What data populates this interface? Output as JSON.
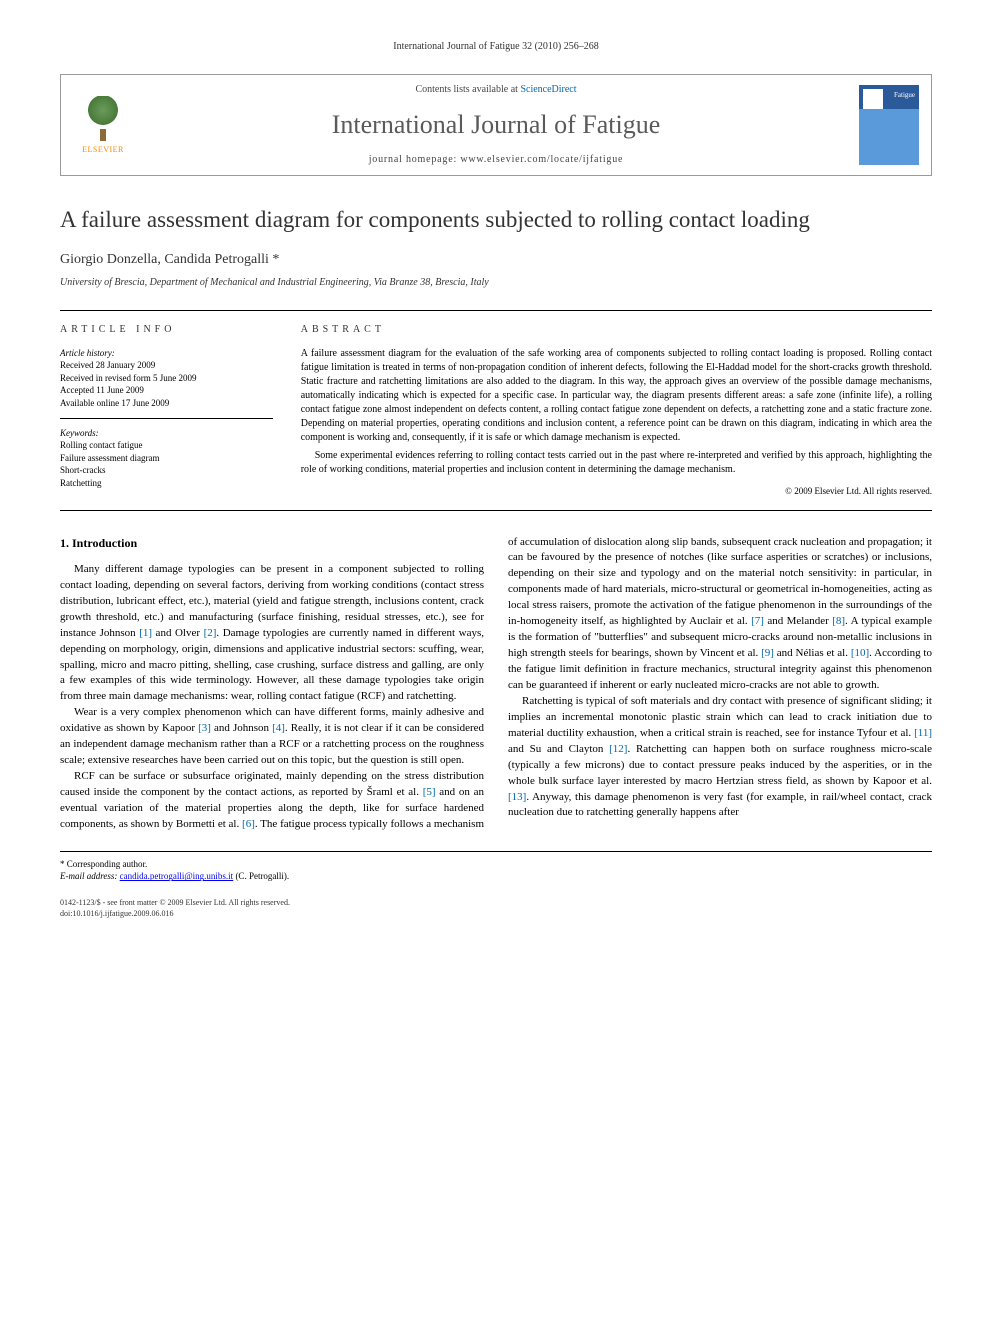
{
  "page_header": "International Journal of Fatigue 32 (2010) 256–268",
  "banner": {
    "publisher": "ELSEVIER",
    "contents_prefix": "Contents lists available at ",
    "contents_link": "ScienceDirect",
    "journal_name": "International Journal of Fatigue",
    "homepage_prefix": "journal homepage: ",
    "homepage_url": "www.elsevier.com/locate/ijfatigue",
    "cover_text": "Fatigue"
  },
  "article": {
    "title": "A failure assessment diagram for components subjected to rolling contact loading",
    "authors": "Giorgio Donzella, Candida Petrogalli *",
    "affiliation": "University of Brescia, Department of Mechanical and Industrial Engineering, Via Branze 38, Brescia, Italy"
  },
  "info": {
    "label": "ARTICLE INFO",
    "history_title": "Article history:",
    "history": [
      "Received 28 January 2009",
      "Received in revised form 5 June 2009",
      "Accepted 11 June 2009",
      "Available online 17 June 2009"
    ],
    "keywords_title": "Keywords:",
    "keywords": [
      "Rolling contact fatigue",
      "Failure assessment diagram",
      "Short-cracks",
      "Ratchetting"
    ]
  },
  "abstract": {
    "label": "ABSTRACT",
    "p1": "A failure assessment diagram for the evaluation of the safe working area of components subjected to rolling contact loading is proposed. Rolling contact fatigue limitation is treated in terms of non-propagation condition of inherent defects, following the El-Haddad model for the short-cracks growth threshold. Static fracture and ratchetting limitations are also added to the diagram. In this way, the approach gives an overview of the possible damage mechanisms, automatically indicating which is expected for a specific case. In particular way, the diagram presents different areas: a safe zone (infinite life), a rolling contact fatigue zone almost independent on defects content, a rolling contact fatigue zone dependent on defects, a ratchetting zone and a static fracture zone. Depending on material properties, operating conditions and inclusion content, a reference point can be drawn on this diagram, indicating in which area the component is working and, consequently, if it is safe or which damage mechanism is expected.",
    "p2": "Some experimental evidences referring to rolling contact tests carried out in the past where re-interpreted and verified by this approach, highlighting the role of working conditions, material properties and inclusion content in determining the damage mechanism.",
    "copyright": "© 2009 Elsevier Ltd. All rights reserved."
  },
  "body": {
    "heading": "1. Introduction",
    "col1_p1a": "Many different damage typologies can be present in a component subjected to rolling contact loading, depending on several factors, deriving from working conditions (contact stress distribution, lubricant effect, etc.), material (yield and fatigue strength, inclusions content, crack growth threshold, etc.) and manufacturing (surface finishing, residual stresses, etc.), see for instance Johnson ",
    "ref1": "[1]",
    "col1_p1b": " and Olver ",
    "ref2": "[2]",
    "col1_p1c": ". Damage typologies are currently named in different ways, depending on morphology, origin, dimensions and applicative industrial sectors: scuffing, wear, spalling, micro and macro pitting, shelling, case crushing, surface distress and galling, are only a few examples of this wide terminology. However, all these damage typologies take origin from three main damage mechanisms: wear, rolling contact fatigue (RCF) and ratchetting.",
    "col1_p2a": "Wear is a very complex phenomenon which can have different forms, mainly adhesive and oxidative as shown by Kapoor ",
    "ref3": "[3]",
    "col1_p2b": " and Johnson ",
    "ref4": "[4]",
    "col1_p2c": ". Really, it is not clear if it can be considered an independent damage mechanism rather than a RCF or a ratchetting process on the roughness scale; extensive researches have been carried out on this topic, but the question is still open.",
    "col1_p3a": "RCF can be surface or subsurface originated, mainly depending on the stress distribution caused inside the component by the contact actions, as reported by Šraml et al. ",
    "ref5": "[5]",
    "col1_p3b": " and on an eventual variation of the material properties along the depth, like for surface",
    "col2_p1a": "hardened components, as shown by Bormetti et al. ",
    "ref6": "[6]",
    "col2_p1b": ". The fatigue process typically follows a mechanism of accumulation of dislocation along slip bands, subsequent crack nucleation and propagation; it can be favoured by the presence of notches (like surface asperities or scratches) or inclusions, depending on their size and typology and on the material notch sensitivity: in particular, in components made of hard materials, micro-structural or geometrical in-homogeneities, acting as local stress raisers, promote the activation of the fatigue phenomenon in the surroundings of the in-homogeneity itself, as highlighted by Auclair et al. ",
    "ref7": "[7]",
    "col2_p1c": " and Melander ",
    "ref8": "[8]",
    "col2_p1d": ". A typical example is the formation of \"butterflies\" and subsequent micro-cracks around non-metallic inclusions in high strength steels for bearings, shown by Vincent et al. ",
    "ref9": "[9]",
    "col2_p1e": " and Nélias et al. ",
    "ref10": "[10]",
    "col2_p1f": ". According to the fatigue limit definition in fracture mechanics, structural integrity against this phenomenon can be guaranteed if inherent or early nucleated micro-cracks are not able to growth.",
    "col2_p2a": "Ratchetting is typical of soft materials and dry contact with presence of significant sliding; it implies an incremental monotonic plastic strain which can lead to crack initiation due to material ductility exhaustion, when a critical strain is reached, see for instance Tyfour et al. ",
    "ref11": "[11]",
    "col2_p2b": " and Su and Clayton ",
    "ref12": "[12]",
    "col2_p2c": ". Ratchetting can happen both on surface roughness micro-scale (typically a few microns) due to contact pressure peaks induced by the asperities, or in the whole bulk surface layer interested by macro Hertzian stress field, as shown by Kapoor et al. ",
    "ref13": "[13]",
    "col2_p2d": ". Anyway, this damage phenomenon is very fast (for example, in rail/wheel contact, crack nucleation due to ratchetting generally happens after"
  },
  "footnote": {
    "corresponding": "* Corresponding author.",
    "email_label": "E-mail address: ",
    "email": "candida.petrogalli@ing.unibs.it",
    "email_suffix": " (C. Petrogalli)."
  },
  "footer": {
    "line1": "0142-1123/$ - see front matter © 2009 Elsevier Ltd. All rights reserved.",
    "line2": "doi:10.1016/j.ijfatigue.2009.06.016"
  },
  "colors": {
    "link": "#0066aa",
    "text": "#000000",
    "journal_gray": "#5a5a5a"
  }
}
